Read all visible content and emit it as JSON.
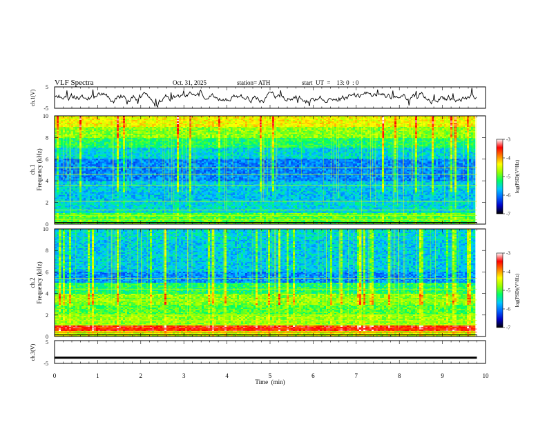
{
  "header": {
    "title": "VLF  Spectra",
    "date": "Oct. 31, 2025",
    "station": "station= ATH",
    "start_ut": "start  UT  =    13: 0  : 0"
  },
  "chart_data": [
    {
      "type": "line",
      "panel": "ch1-waveform",
      "ylabel": "ch.1(V)",
      "ylim": [
        -5,
        5
      ],
      "y_ticks": [
        "5",
        "-5"
      ],
      "xlim": [
        0,
        10
      ],
      "trace_color": "#000000",
      "x_end": 9.8
    },
    {
      "type": "heatmap",
      "panel": "ch1-spectrogram",
      "ylabel_top": "ch.1",
      "ylabel": "Frequency  (kHz)",
      "ylim": [
        0,
        10
      ],
      "y_ticks": [
        "0",
        "2",
        "4",
        "6",
        "8",
        "10"
      ],
      "xlim": [
        0,
        10
      ],
      "x_end": 9.8,
      "colorbar": {
        "label": "log(PSD)(V²/Hz)",
        "range": [
          -7,
          -3
        ],
        "ticks": [
          "-3",
          "-4",
          "-5",
          "-6",
          "-7"
        ],
        "colors": [
          "#000000",
          "#0000c8",
          "#0064ff",
          "#00c8ff",
          "#00ff64",
          "#96ff00",
          "#ffff00",
          "#ff8000",
          "#ff0000",
          "#ffffff"
        ]
      }
    },
    {
      "type": "heatmap",
      "panel": "ch2-spectrogram",
      "ylabel_top": "ch.2",
      "ylabel": "Frequency  (kHz)",
      "ylim": [
        0,
        10
      ],
      "y_ticks": [
        "0",
        "2",
        "4",
        "6",
        "8",
        "10"
      ],
      "xlim": [
        0,
        10
      ],
      "x_end": 9.8,
      "colorbar": {
        "label": "log(PSD)(V²/Hz)",
        "range": [
          -7,
          -3
        ],
        "ticks": [
          "-3",
          "-4",
          "-5",
          "-6",
          "-7"
        ]
      }
    },
    {
      "type": "line",
      "panel": "ch3-waveform",
      "ylabel": "ch.3(V)",
      "ylim": [
        -5,
        5
      ],
      "y_ticks": [
        "5",
        "-5"
      ],
      "xlim": [
        0,
        10
      ],
      "x_end": 9.8,
      "level": -2.5,
      "trace_color": "#000000"
    }
  ],
  "x_axis": {
    "label": "Time  (min)",
    "range": [
      0,
      10
    ],
    "ticks": [
      "0",
      "1",
      "2",
      "3",
      "4",
      "5",
      "6",
      "7",
      "8",
      "9",
      "10"
    ]
  }
}
